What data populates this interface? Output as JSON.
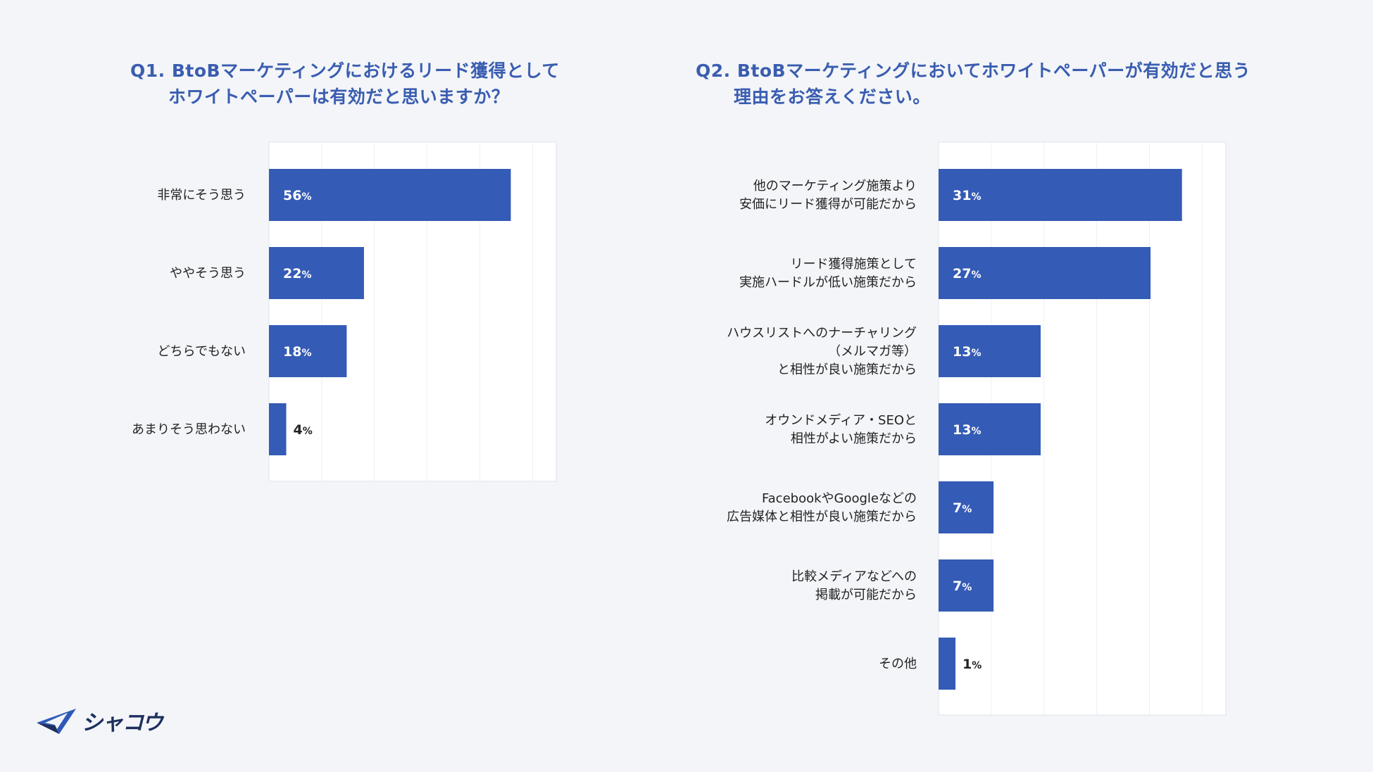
{
  "charts": [
    {
      "title_lines": [
        "Q1. BtoBマーケティングにおけるリード獲得として",
        "ホワイトペーパーは有効だと思いますか？"
      ]
    },
    {
      "title_lines": [
        "Q2. BtoBマーケティングにおいてホワイトペーパーが有効だと思う",
        "理由をお答えください。"
      ]
    }
  ],
  "colors": {
    "bar": "#345bb5",
    "title": "#3a5db0",
    "background": "#f3f5f8"
  },
  "logo": {
    "icon": "paper-plane-icon",
    "text": "シャコウ"
  },
  "chart_data": [
    {
      "type": "bar",
      "orientation": "horizontal",
      "title": "Q1. BtoBマーケティングにおけるリード獲得として ホワイトペーパーは有効だと思いますか？",
      "categories": [
        [
          "非常にそう思う"
        ],
        [
          "ややそう思う"
        ],
        [
          "どちらでもない"
        ],
        [
          "あまりそう思わない"
        ]
      ],
      "values": [
        56,
        22,
        18,
        4
      ],
      "unit": "%",
      "xlim": [
        0,
        60
      ],
      "grid": true
    },
    {
      "type": "bar",
      "orientation": "horizontal",
      "title": "Q2. BtoBマーケティングにおいてホワイトペーパーが有効だと思う 理由をお答えください。",
      "categories": [
        [
          "他のマーケティング施策より",
          "安価にリード獲得が可能だから"
        ],
        [
          "リード獲得施策として",
          "実施ハードルが低い施策だから"
        ],
        [
          "ハウスリストへのナーチャリング",
          "（メルマガ等）",
          "と相性が良い施策だから"
        ],
        [
          "オウンドメディア・SEOと",
          "相性がよい施策だから"
        ],
        [
          "FacebookやGoogleなどの",
          "広告媒体と相性が良い施策だから"
        ],
        [
          "比較メディアなどへの",
          "掲載が可能だから"
        ],
        [
          "その他"
        ]
      ],
      "values": [
        31,
        27,
        13,
        13,
        7,
        7,
        1
      ],
      "unit": "%",
      "xlim": [
        0,
        33
      ],
      "grid": true
    }
  ]
}
